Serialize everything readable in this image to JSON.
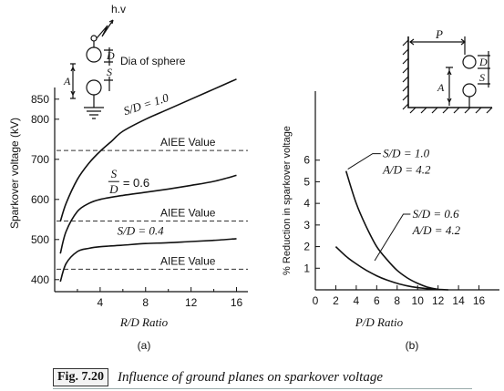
{
  "figure": {
    "number": "Fig. 7.20",
    "caption": "Influence of ground planes on sparkover voltage"
  },
  "panel_a": {
    "label": "(a)",
    "schematic": {
      "hv": "h.v",
      "sphere_dia": "Dia of sphere",
      "D": "D",
      "S": "S",
      "A": "A"
    }
  },
  "panel_b": {
    "label": "(b)",
    "schematic": {
      "P": "P",
      "D": "D",
      "S": "S",
      "A": "A"
    }
  },
  "chart_data": [
    {
      "type": "line",
      "xlabel": "R/D Ratio",
      "ylabel": "Sparkover voltage (kV)",
      "x_ticks": [
        4,
        8,
        12,
        16
      ],
      "x_tick_labels": [
        "4",
        "8",
        "12",
        "16"
      ],
      "y_tick_labels": [
        "400",
        "500",
        "600",
        "700",
        "800",
        "850"
      ],
      "y_ticks": [
        400,
        500,
        600,
        700,
        800,
        850
      ],
      "xlim": [
        0,
        17
      ],
      "ylim": [
        370,
        920
      ],
      "series": [
        {
          "name": "S/D = 1.0",
          "x": [
            0.5,
            1,
            2,
            3,
            4,
            5,
            6,
            8,
            10,
            12,
            14,
            16
          ],
          "y": [
            545,
            590,
            650,
            690,
            720,
            745,
            770,
            800,
            825,
            850,
            875,
            900
          ]
        },
        {
          "name": "S/D = 0.6",
          "x": [
            0.5,
            1,
            2,
            3,
            4,
            6,
            8,
            10,
            12,
            14,
            16
          ],
          "y": [
            465,
            520,
            570,
            590,
            600,
            610,
            618,
            626,
            635,
            645,
            660
          ]
        },
        {
          "name": "S/D = 0.4",
          "x": [
            0.5,
            1,
            2,
            3,
            4,
            6,
            8,
            10,
            12,
            14,
            16
          ],
          "y": [
            395,
            440,
            470,
            478,
            482,
            486,
            490,
            492,
            495,
            498,
            502
          ]
        }
      ],
      "reference_lines": [
        {
          "label": "AIEE Value",
          "y": 722
        },
        {
          "label": "AIEE Value",
          "y": 546
        },
        {
          "label": "AIEE Value",
          "y": 426
        }
      ],
      "annotations": [
        {
          "text": "S/D = 1.0"
        },
        {
          "text": "S/D = 0.6",
          "fraction": {
            "num": "S",
            "den": "D",
            "rest": "= 0.6"
          }
        },
        {
          "text": "S/D = 0.4"
        }
      ]
    },
    {
      "type": "line",
      "xlabel": "P/D Ratio",
      "ylabel": "% Reduction in sparkover voltage",
      "x_ticks": [
        0,
        2,
        4,
        6,
        8,
        10,
        12,
        14,
        16
      ],
      "x_tick_labels": [
        "0",
        "2",
        "4",
        "6",
        "8",
        "10",
        "12",
        "14",
        "16"
      ],
      "y_ticks": [
        1,
        2,
        3,
        4,
        5,
        6
      ],
      "y_tick_labels": [
        "1",
        "2",
        "3",
        "4",
        "5",
        "6"
      ],
      "xlim": [
        0,
        18
      ],
      "ylim": [
        0,
        7
      ],
      "series": [
        {
          "name": "S/D = 1.0, A/D = 4.2",
          "x": [
            3,
            4,
            5,
            6,
            7,
            8,
            9,
            10,
            11,
            12
          ],
          "y": [
            5.5,
            4.0,
            2.9,
            2.0,
            1.4,
            0.9,
            0.55,
            0.3,
            0.12,
            0.02
          ]
        },
        {
          "name": "S/D = 0.6, A/D = 4.2",
          "x": [
            2,
            3,
            4,
            5,
            6,
            7,
            8,
            9,
            10,
            11,
            12,
            13
          ],
          "y": [
            2.0,
            1.55,
            1.2,
            0.9,
            0.65,
            0.45,
            0.3,
            0.18,
            0.1,
            0.05,
            0.02,
            0.0
          ]
        }
      ],
      "annotations": [
        {
          "line1": "S/D = 1.0",
          "line2": "A/D = 4.2"
        },
        {
          "line1": "S/D = 0.6",
          "line2": "A/D = 4.2"
        }
      ]
    }
  ]
}
